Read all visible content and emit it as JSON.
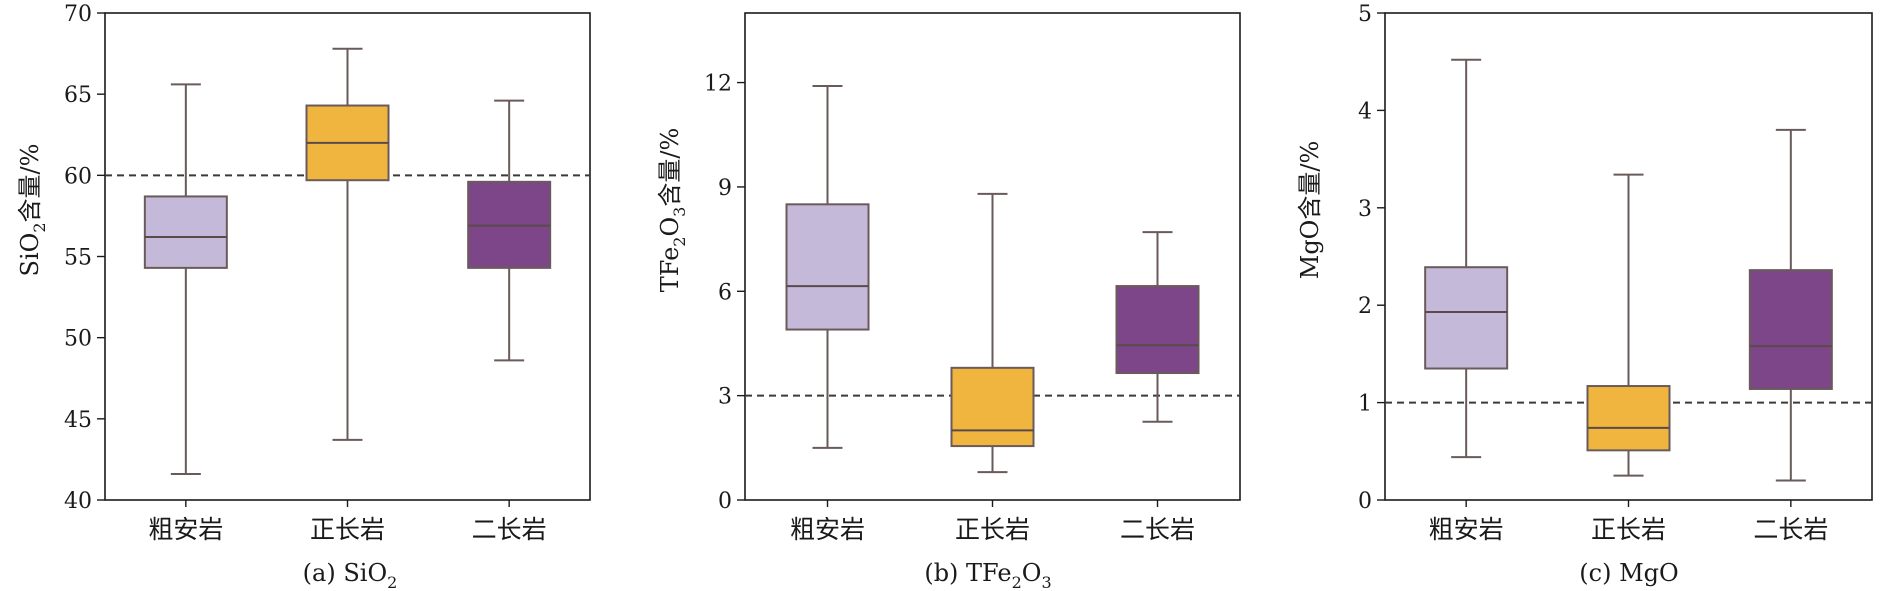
{
  "chart_data": [
    {
      "type": "box",
      "caption": "(a) SiO2",
      "caption_parts": {
        "prefix": "(a) SiO",
        "sub": "2"
      },
      "ylabel_parts": {
        "a": "SiO",
        "sub": "2",
        "b": "含量/%"
      },
      "categories": [
        "粗安岩",
        "正长岩",
        "二长岩"
      ],
      "ylim": [
        40,
        70
      ],
      "yticks": [
        40,
        45,
        50,
        55,
        60,
        65,
        70
      ],
      "reference_line": 60,
      "boxes": [
        {
          "category": "粗安岩",
          "min": 41.6,
          "q1": 54.3,
          "median": 56.2,
          "q3": 58.7,
          "max": 65.6,
          "color": "#c5b9da"
        },
        {
          "category": "正长岩",
          "min": 43.7,
          "q1": 59.7,
          "median": 62.0,
          "q3": 64.3,
          "max": 67.8,
          "color": "#f0b53f"
        },
        {
          "category": "二长岩",
          "min": 48.6,
          "q1": 54.3,
          "median": 56.9,
          "q3": 59.6,
          "max": 64.6,
          "color": "#7d4689"
        }
      ]
    },
    {
      "type": "box",
      "caption": "(b) TFe2O3",
      "caption_parts": {
        "prefix": "(b) TFe",
        "sub": "2",
        "suffix": "O",
        "sub2": "3"
      },
      "ylabel_parts": {
        "a": "TFe",
        "sub": "2",
        "b": "O",
        "sub2": "3",
        "c": "含量/%"
      },
      "categories": [
        "粗安岩",
        "正长岩",
        "二长岩"
      ],
      "ylim": [
        0,
        14
      ],
      "yticks": [
        0,
        3,
        6,
        9,
        12
      ],
      "reference_line": 3,
      "boxes": [
        {
          "category": "粗安岩",
          "min": 1.5,
          "q1": 4.9,
          "median": 6.15,
          "q3": 8.5,
          "max": 11.9,
          "color": "#c5b9da"
        },
        {
          "category": "正长岩",
          "min": 0.8,
          "q1": 1.55,
          "median": 2.0,
          "q3": 3.8,
          "max": 8.8,
          "color": "#f0b53f"
        },
        {
          "category": "二长岩",
          "min": 2.25,
          "q1": 3.65,
          "median": 4.45,
          "q3": 6.15,
          "max": 7.7,
          "color": "#7d4689"
        }
      ]
    },
    {
      "type": "box",
      "caption": "(c) MgO",
      "caption_parts": {
        "prefix": "(c) MgO"
      },
      "ylabel_parts": {
        "a": "MgO含量/%"
      },
      "categories": [
        "粗安岩",
        "正长岩",
        "二长岩"
      ],
      "ylim": [
        0,
        5
      ],
      "yticks": [
        0,
        1,
        2,
        3,
        4,
        5
      ],
      "reference_line": 1,
      "boxes": [
        {
          "category": "粗安岩",
          "min": 0.44,
          "q1": 1.35,
          "median": 1.93,
          "q3": 2.39,
          "max": 4.52,
          "color": "#c5b9da"
        },
        {
          "category": "正长岩",
          "min": 0.25,
          "q1": 0.51,
          "median": 0.74,
          "q3": 1.17,
          "max": 3.34,
          "color": "#f0b53f"
        },
        {
          "category": "二长岩",
          "min": 0.2,
          "q1": 1.14,
          "median": 1.58,
          "q3": 2.36,
          "max": 3.8,
          "color": "#7d4689"
        }
      ]
    }
  ]
}
